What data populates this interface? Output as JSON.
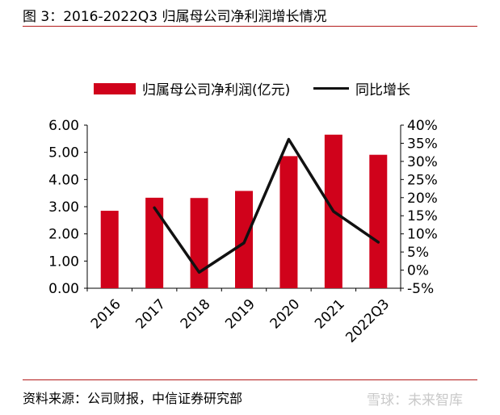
{
  "figure": {
    "title": "图 3：2016-2022Q3 归属母公司净利润增长情况",
    "source": "资料来源：公司财报，中信证券研究部",
    "watermark": "雪球：未来智库"
  },
  "chart_data": {
    "type": "bar",
    "categories": [
      "2016",
      "2017",
      "2018",
      "2019",
      "2020",
      "2021",
      "2022Q3"
    ],
    "series": [
      {
        "name": "归属母公司净利润(亿元)",
        "type": "bar",
        "axis": "left",
        "values": [
          2.85,
          3.33,
          3.32,
          3.58,
          4.86,
          5.65,
          4.91
        ],
        "color": "#d0021b"
      },
      {
        "name": "同比增长",
        "type": "line",
        "axis": "right",
        "values": [
          null,
          17.2,
          -0.6,
          7.5,
          36.1,
          16.2,
          7.7
        ],
        "color": "#111111"
      }
    ],
    "y_left": {
      "min": 0,
      "max": 6,
      "ticks": [
        "0.00",
        "1.00",
        "2.00",
        "3.00",
        "4.00",
        "5.00",
        "6.00"
      ]
    },
    "y_right": {
      "min": -5,
      "max": 40,
      "ticks": [
        "-5%",
        "0%",
        "5%",
        "10%",
        "15%",
        "20%",
        "25%",
        "30%",
        "35%",
        "40%"
      ]
    },
    "legend": "top",
    "grid": false
  }
}
